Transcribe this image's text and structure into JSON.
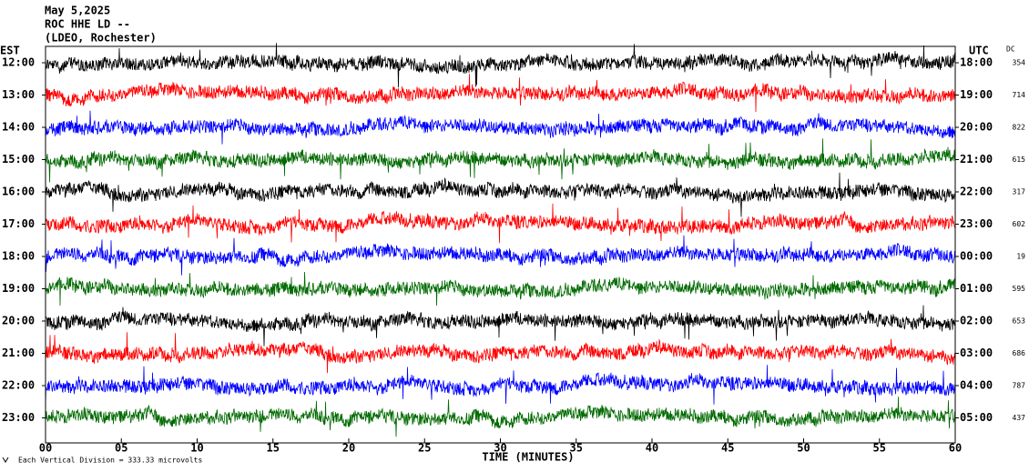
{
  "header": {
    "date": "May 5,2025",
    "station": "ROC HHE LD --",
    "location": "(LDEO, Rochester)"
  },
  "left_label": "EST",
  "right_label": "UTC",
  "dc_label": "DC",
  "rows": [
    {
      "est": "12:00",
      "utc": "18:00",
      "dc": 354,
      "color": "#000000"
    },
    {
      "est": "13:00",
      "utc": "19:00",
      "dc": 714,
      "color": "#ff0000"
    },
    {
      "est": "14:00",
      "utc": "20:00",
      "dc": 822,
      "color": "#0000ff"
    },
    {
      "est": "15:00",
      "utc": "21:00",
      "dc": 615,
      "color": "#006a00"
    },
    {
      "est": "16:00",
      "utc": "22:00",
      "dc": 317,
      "color": "#000000"
    },
    {
      "est": "17:00",
      "utc": "23:00",
      "dc": 602,
      "color": "#ff0000"
    },
    {
      "est": "18:00",
      "utc": "00:00",
      "dc": 19,
      "color": "#0000ff"
    },
    {
      "est": "19:00",
      "utc": "01:00",
      "dc": 595,
      "color": "#006a00"
    },
    {
      "est": "20:00",
      "utc": "02:00",
      "dc": 653,
      "color": "#000000"
    },
    {
      "est": "21:00",
      "utc": "03:00",
      "dc": 686,
      "color": "#ff0000"
    },
    {
      "est": "22:00",
      "utc": "04:00",
      "dc": 787,
      "color": "#0000ff"
    },
    {
      "est": "23:00",
      "utc": "05:00",
      "dc": 437,
      "color": "#006a00"
    }
  ],
  "x_axis": {
    "label": "TIME (MINUTES)",
    "ticks": [
      "00",
      "05",
      "10",
      "15",
      "20",
      "25",
      "30",
      "35",
      "40",
      "45",
      "50",
      "55",
      "60"
    ]
  },
  "footer": "Each Vertical Division =  333.33 microvolts"
}
